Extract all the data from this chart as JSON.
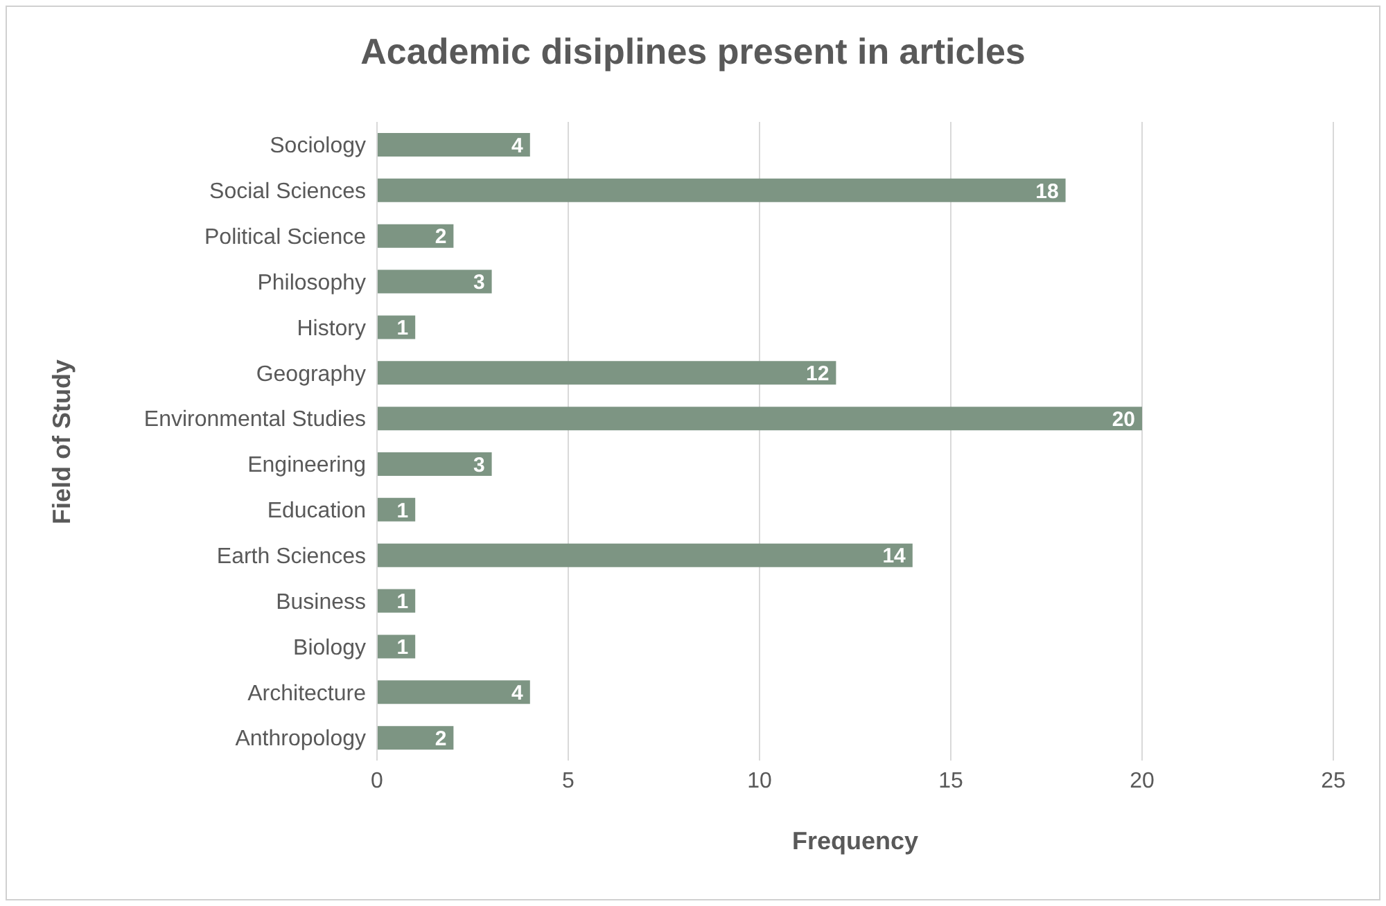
{
  "chart_data": {
    "type": "bar",
    "orientation": "horizontal",
    "title": "Academic disiplines present in articles",
    "xlabel": "Frequency",
    "ylabel": "Field of Study",
    "categories": [
      "Sociology",
      "Social Sciences",
      "Political Science",
      "Philosophy",
      "History",
      "Geography",
      "Environmental Studies",
      "Engineering",
      "Education",
      "Earth Sciences",
      "Business",
      "Biology",
      "Architecture",
      "Anthropology"
    ],
    "values": [
      4,
      18,
      2,
      3,
      1,
      12,
      20,
      3,
      1,
      14,
      1,
      1,
      4,
      2
    ],
    "color": "#7d9583",
    "xlim": [
      0,
      25
    ],
    "xticks": [
      0,
      5,
      10,
      15,
      20,
      25
    ],
    "grid": "x",
    "data_labels": true
  }
}
